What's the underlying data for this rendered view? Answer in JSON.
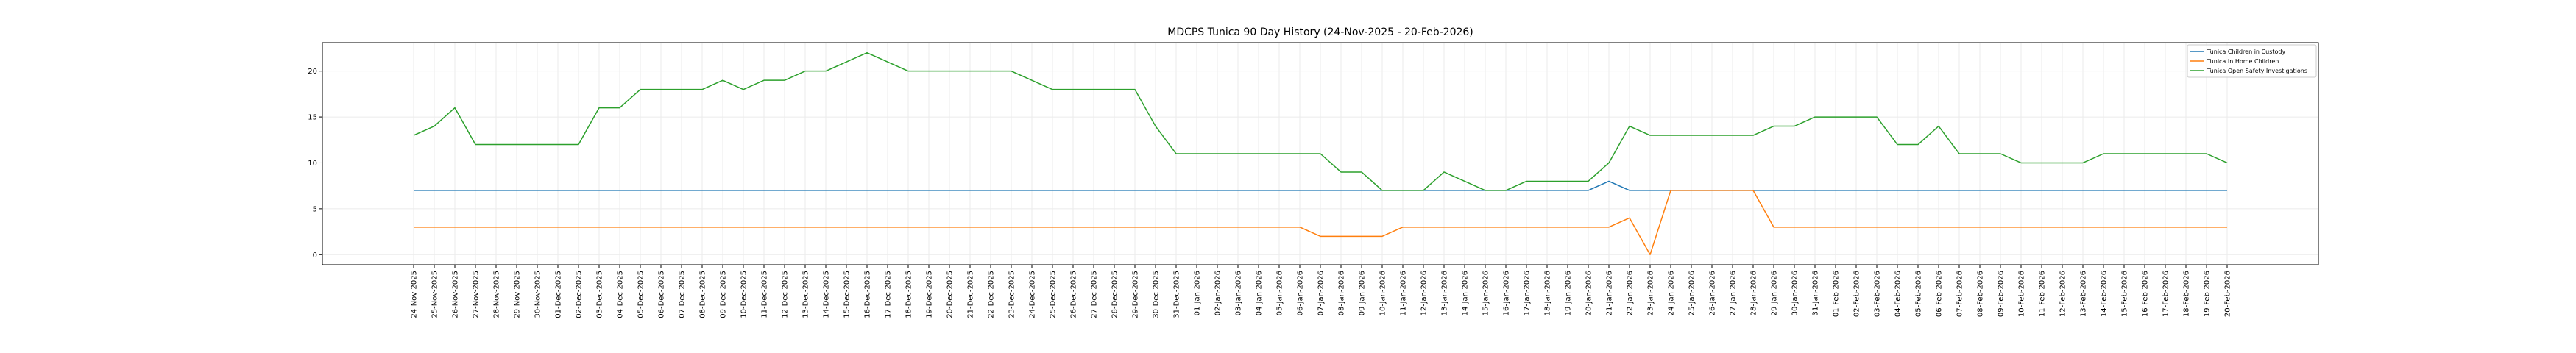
{
  "chart_data": {
    "type": "line",
    "title": "MDCPS Tunica 90 Day History (24-Nov-2025 - 20-Feb-2026)",
    "xlabel": "",
    "ylabel": "",
    "ylim": [
      -1.1,
      23.1
    ],
    "yticks": [
      0,
      5,
      10,
      15,
      20
    ],
    "grid": true,
    "legend_position": "top-right",
    "x": [
      "24-Nov-2025",
      "25-Nov-2025",
      "26-Nov-2025",
      "27-Nov-2025",
      "28-Nov-2025",
      "29-Nov-2025",
      "30-Nov-2025",
      "01-Dec-2025",
      "02-Dec-2025",
      "03-Dec-2025",
      "04-Dec-2025",
      "05-Dec-2025",
      "06-Dec-2025",
      "07-Dec-2025",
      "08-Dec-2025",
      "09-Dec-2025",
      "10-Dec-2025",
      "11-Dec-2025",
      "12-Dec-2025",
      "13-Dec-2025",
      "14-Dec-2025",
      "15-Dec-2025",
      "16-Dec-2025",
      "17-Dec-2025",
      "18-Dec-2025",
      "19-Dec-2025",
      "20-Dec-2025",
      "21-Dec-2025",
      "22-Dec-2025",
      "23-Dec-2025",
      "24-Dec-2025",
      "25-Dec-2025",
      "26-Dec-2025",
      "27-Dec-2025",
      "28-Dec-2025",
      "29-Dec-2025",
      "30-Dec-2025",
      "31-Dec-2025",
      "01-Jan-2026",
      "02-Jan-2026",
      "03-Jan-2026",
      "04-Jan-2026",
      "05-Jan-2026",
      "06-Jan-2026",
      "07-Jan-2026",
      "08-Jan-2026",
      "09-Jan-2026",
      "10-Jan-2026",
      "11-Jan-2026",
      "12-Jan-2026",
      "13-Jan-2026",
      "14-Jan-2026",
      "15-Jan-2026",
      "16-Jan-2026",
      "17-Jan-2026",
      "18-Jan-2026",
      "19-Jan-2026",
      "20-Jan-2026",
      "21-Jan-2026",
      "22-Jan-2026",
      "23-Jan-2026",
      "24-Jan-2026",
      "25-Jan-2026",
      "26-Jan-2026",
      "27-Jan-2026",
      "28-Jan-2026",
      "29-Jan-2026",
      "30-Jan-2026",
      "31-Jan-2026",
      "01-Feb-2026",
      "02-Feb-2026",
      "03-Feb-2026",
      "04-Feb-2026",
      "05-Feb-2026",
      "06-Feb-2026",
      "07-Feb-2026",
      "08-Feb-2026",
      "09-Feb-2026",
      "10-Feb-2026",
      "11-Feb-2026",
      "12-Feb-2026",
      "13-Feb-2026",
      "14-Feb-2026",
      "15-Feb-2026",
      "16-Feb-2026",
      "17-Feb-2026",
      "18-Feb-2026",
      "19-Feb-2026",
      "20-Feb-2026"
    ],
    "series": [
      {
        "name": "Tunica Children in Custody",
        "color": "#1f77b4",
        "values": [
          7,
          7,
          7,
          7,
          7,
          7,
          7,
          7,
          7,
          7,
          7,
          7,
          7,
          7,
          7,
          7,
          7,
          7,
          7,
          7,
          7,
          7,
          7,
          7,
          7,
          7,
          7,
          7,
          7,
          7,
          7,
          7,
          7,
          7,
          7,
          7,
          7,
          7,
          7,
          7,
          7,
          7,
          7,
          7,
          7,
          7,
          7,
          7,
          7,
          7,
          7,
          7,
          7,
          7,
          7,
          7,
          7,
          7,
          8,
          7,
          7,
          7,
          7,
          7,
          7,
          7,
          7,
          7,
          7,
          7,
          7,
          7,
          7,
          7,
          7,
          7,
          7,
          7,
          7,
          7,
          7,
          7,
          7,
          7,
          7,
          7,
          7,
          7,
          7
        ]
      },
      {
        "name": "Tunica In Home Children",
        "color": "#ff7f0e",
        "values": [
          3,
          3,
          3,
          3,
          3,
          3,
          3,
          3,
          3,
          3,
          3,
          3,
          3,
          3,
          3,
          3,
          3,
          3,
          3,
          3,
          3,
          3,
          3,
          3,
          3,
          3,
          3,
          3,
          3,
          3,
          3,
          3,
          3,
          3,
          3,
          3,
          3,
          3,
          3,
          3,
          3,
          3,
          3,
          3,
          2,
          2,
          2,
          2,
          3,
          3,
          3,
          3,
          3,
          3,
          3,
          3,
          3,
          3,
          3,
          4,
          0,
          7,
          7,
          7,
          7,
          7,
          3,
          3,
          3,
          3,
          3,
          3,
          3,
          3,
          3,
          3,
          3,
          3,
          3,
          3,
          3,
          3,
          3,
          3,
          3,
          3,
          3,
          3,
          3
        ]
      },
      {
        "name": "Tunica Open Safety Investigations",
        "color": "#2ca02c",
        "values": [
          13,
          14,
          16,
          12,
          12,
          12,
          12,
          12,
          12,
          16,
          16,
          18,
          18,
          18,
          18,
          19,
          18,
          19,
          19,
          20,
          20,
          21,
          22,
          21,
          20,
          20,
          20,
          20,
          20,
          20,
          19,
          18,
          18,
          18,
          18,
          18,
          14,
          11,
          11,
          11,
          11,
          11,
          11,
          11,
          11,
          9,
          9,
          7,
          7,
          7,
          9,
          8,
          7,
          7,
          8,
          8,
          8,
          8,
          10,
          14,
          13,
          13,
          13,
          13,
          13,
          13,
          14,
          14,
          15,
          15,
          15,
          15,
          12,
          12,
          14,
          11,
          11,
          11,
          10,
          10,
          10,
          10,
          11,
          11,
          11,
          11,
          11,
          11,
          10
        ]
      }
    ]
  }
}
